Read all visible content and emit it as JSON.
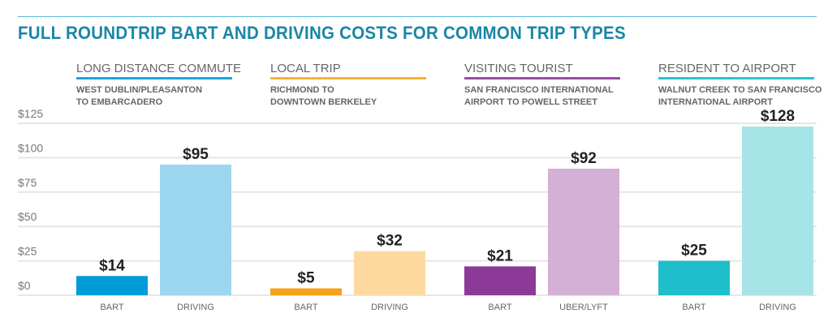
{
  "chart_data": {
    "type": "bar",
    "title": "FULL ROUNDTRIP BART AND DRIVING COSTS FOR COMMON TRIP TYPES",
    "xlabel": "",
    "ylabel": "",
    "ylim": [
      0,
      125
    ],
    "yticks": [
      0,
      25,
      50,
      75,
      100,
      125
    ],
    "ytick_labels": [
      "$0",
      "$25",
      "$50",
      "$75",
      "$100",
      "$125"
    ],
    "grid": true,
    "groups": [
      {
        "name": "LONG DISTANCE COMMUTE",
        "subtitle": "WEST DUBLIN/PLEASANTON\nTO EMBARCADERO",
        "color": "#1ba6dc",
        "bars": [
          {
            "category": "BART",
            "value": 14,
            "label": "$14",
            "color": "#009bd8"
          },
          {
            "category": "DRIVING",
            "value": 95,
            "label": "$95",
            "color": "#9cd6ef"
          }
        ]
      },
      {
        "name": "LOCAL TRIP",
        "subtitle": "RICHMOND TO\nDOWNTOWN BERKELEY",
        "color": "#f9b233",
        "bars": [
          {
            "category": "BART",
            "value": 5,
            "label": "$5",
            "color": "#f5a11c"
          },
          {
            "category": "DRIVING",
            "value": 32,
            "label": "$32",
            "color": "#fdd9a0"
          }
        ]
      },
      {
        "name": "VISITING TOURIST",
        "subtitle": "SAN FRANCISCO INTERNATIONAL\nAIRPORT TO POWELL STREET",
        "color": "#9b4ca6",
        "bars": [
          {
            "category": "BART",
            "value": 21,
            "label": "$21",
            "color": "#8b3b97"
          },
          {
            "category": "UBER/LYFT",
            "value": 92,
            "label": "$92",
            "color": "#d4b0d6"
          }
        ]
      },
      {
        "name": "RESIDENT TO AIRPORT",
        "subtitle": "WALNUT CREEK TO SAN FRANCISCO\nINTERNATIONAL AIRPORT",
        "color": "#28c4d0",
        "bars": [
          {
            "category": "BART",
            "value": 25,
            "label": "$25",
            "color": "#1fbecb"
          },
          {
            "category": "DRIVING",
            "value": 128,
            "label": "$128",
            "color": "#a7e4e8"
          }
        ]
      }
    ]
  }
}
